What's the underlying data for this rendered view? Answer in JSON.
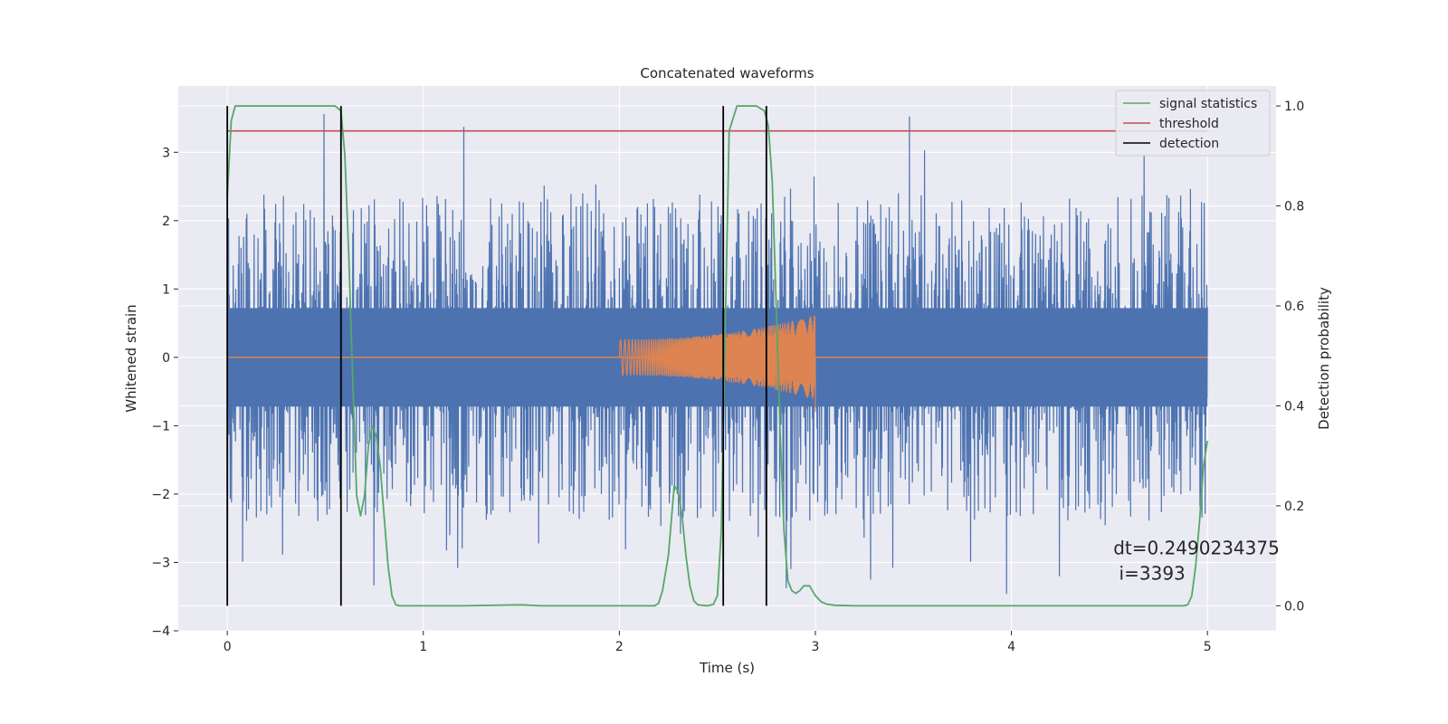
{
  "chart_data": {
    "type": "line",
    "title": "Concatenated waveforms",
    "xlabel": "Time (s)",
    "ylabel": "Whitened strain",
    "ylabel_right": "Detection probability",
    "xlim": [
      -0.25,
      5.35
    ],
    "ylim": [
      -4,
      3.97
    ],
    "ylim_right": [
      -0.05,
      1.04
    ],
    "xticks": [
      0,
      1,
      2,
      3,
      4,
      5
    ],
    "yticks": [
      -4,
      -3,
      -2,
      -1,
      0,
      1,
      2,
      3
    ],
    "yticks_right": [
      0.0,
      0.2,
      0.4,
      0.6,
      0.8,
      1.0
    ],
    "yticks_right_labels": [
      "0.0",
      "0.2",
      "0.4",
      "0.6",
      "0.8",
      "1.0"
    ],
    "grid": true,
    "legend_position": "top-right",
    "colors": {
      "background": "#eaeaf2",
      "noise": "#4c72b0",
      "chirp": "#dd8452",
      "signal_statistics": "#55a868",
      "threshold": "#c44e52",
      "detection": "#000000"
    },
    "legend": [
      {
        "label": "signal statistics",
        "color": "#55a868"
      },
      {
        "label": "threshold",
        "color": "#c44e52"
      },
      {
        "label": "detection",
        "color": "#000000"
      }
    ],
    "series": [
      {
        "name": "signal statistics",
        "axis": "right",
        "x": [
          0.0,
          0.02,
          0.04,
          0.06,
          0.1,
          0.3,
          0.5,
          0.55,
          0.58,
          0.6,
          0.62,
          0.64,
          0.66,
          0.68,
          0.7,
          0.72,
          0.74,
          0.76,
          0.78,
          0.8,
          0.82,
          0.84,
          0.86,
          0.88,
          0.9,
          1.0,
          1.2,
          1.5,
          1.6,
          1.8,
          2.0,
          2.1,
          2.15,
          2.18,
          2.2,
          2.22,
          2.25,
          2.28,
          2.3,
          2.32,
          2.34,
          2.36,
          2.38,
          2.4,
          2.45,
          2.48,
          2.5,
          2.52,
          2.54,
          2.56,
          2.6,
          2.7,
          2.74,
          2.76,
          2.78,
          2.8,
          2.82,
          2.84,
          2.86,
          2.88,
          2.9,
          2.92,
          2.94,
          2.97,
          3.0,
          3.03,
          3.06,
          3.1,
          3.2,
          3.5,
          4.0,
          4.5,
          4.8,
          4.85,
          4.88,
          4.9,
          4.92,
          4.94,
          4.96,
          4.98,
          5.0
        ],
        "values": [
          0.82,
          0.97,
          1.0,
          1.0,
          1.0,
          1.0,
          1.0,
          1.0,
          0.99,
          0.9,
          0.7,
          0.45,
          0.22,
          0.18,
          0.22,
          0.32,
          0.36,
          0.34,
          0.28,
          0.18,
          0.08,
          0.02,
          0.002,
          0.0,
          0.0,
          0.0,
          0.0,
          0.002,
          0.0,
          0.0,
          0.0,
          0.0,
          0.0,
          0.0,
          0.005,
          0.03,
          0.1,
          0.24,
          0.23,
          0.18,
          0.1,
          0.04,
          0.01,
          0.002,
          0.0,
          0.003,
          0.02,
          0.15,
          0.55,
          0.95,
          1.0,
          1.0,
          0.99,
          0.96,
          0.85,
          0.6,
          0.35,
          0.15,
          0.05,
          0.03,
          0.025,
          0.03,
          0.04,
          0.04,
          0.02,
          0.008,
          0.003,
          0.001,
          0.0,
          0.0,
          0.0,
          0.0,
          0.0,
          0.0,
          0.0,
          0.002,
          0.02,
          0.08,
          0.17,
          0.28,
          0.33
        ]
      },
      {
        "name": "threshold",
        "axis": "right",
        "x": [
          0.0,
          5.0
        ],
        "values": [
          0.95,
          0.95
        ]
      },
      {
        "name": "detection",
        "axis": "right",
        "x_positions": [
          0.0,
          0.58,
          2.53,
          2.75
        ],
        "range": [
          0.0,
          1.0
        ]
      }
    ],
    "noise": {
      "x_range": [
        0.0,
        5.0
      ],
      "dense_band": [
        -0.72,
        0.72
      ],
      "typical_range": [
        -2.3,
        2.4
      ],
      "extreme_max": 3.6,
      "extreme_min": -3.6
    },
    "chirp": {
      "x_range": [
        2.0,
        3.0
      ],
      "amplitude_start": 0.26,
      "amplitude_end": 0.62,
      "baseline_x_range": [
        0.0,
        5.0
      ],
      "baseline_value": 0
    },
    "annotation": {
      "lines": [
        "dt=0.2490234375",
        " i=3393"
      ],
      "x": 4.52,
      "y": -2.88
    }
  }
}
